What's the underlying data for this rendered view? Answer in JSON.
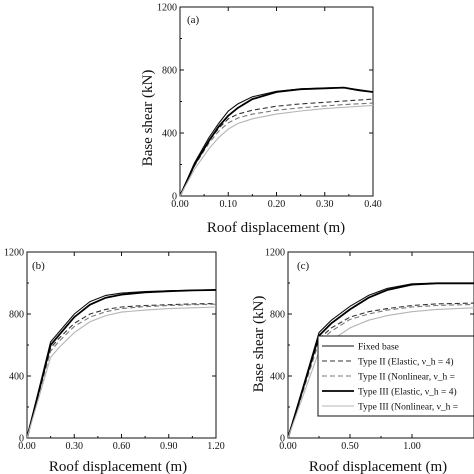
{
  "chart_data": [
    {
      "panel": "(a)",
      "type": "line",
      "xlabel": "Roof displacement (m)",
      "ylabel": "Base shear (kN)",
      "xlim": [
        0,
        0.4
      ],
      "ylim": [
        0,
        1200
      ],
      "xticks": [
        "0.00",
        "0.10",
        "0.20",
        "0.30",
        "0.40"
      ],
      "yticks": [
        "0",
        "400",
        "800",
        "1200"
      ],
      "series": [
        {
          "key": "fixed",
          "x": [
            0,
            0.03,
            0.06,
            0.08,
            0.1,
            0.12,
            0.15,
            0.2,
            0.25,
            0.3,
            0.34,
            0.37,
            0.4
          ],
          "y": [
            0,
            210,
            370,
            460,
            540,
            585,
            630,
            665,
            680,
            685,
            688,
            675,
            660
          ]
        },
        {
          "key": "t2e",
          "x": [
            0,
            0.03,
            0.06,
            0.08,
            0.1,
            0.12,
            0.15,
            0.2,
            0.25,
            0.3,
            0.35,
            0.4
          ],
          "y": [
            0,
            200,
            350,
            430,
            490,
            520,
            545,
            570,
            585,
            595,
            605,
            615
          ]
        },
        {
          "key": "t2n",
          "x": [
            0,
            0.03,
            0.06,
            0.08,
            0.1,
            0.12,
            0.15,
            0.2,
            0.25,
            0.3,
            0.35,
            0.4
          ],
          "y": [
            0,
            190,
            335,
            410,
            465,
            495,
            520,
            545,
            560,
            572,
            582,
            590
          ]
        },
        {
          "key": "t3e",
          "x": [
            0,
            0.03,
            0.06,
            0.08,
            0.1,
            0.12,
            0.15,
            0.2,
            0.25,
            0.3,
            0.34,
            0.37,
            0.4
          ],
          "y": [
            0,
            200,
            350,
            440,
            510,
            560,
            615,
            660,
            678,
            684,
            688,
            672,
            660
          ]
        },
        {
          "key": "t3n",
          "x": [
            0,
            0.03,
            0.06,
            0.08,
            0.1,
            0.12,
            0.15,
            0.2,
            0.25,
            0.3,
            0.35,
            0.4
          ],
          "y": [
            0,
            170,
            300,
            370,
            425,
            460,
            490,
            520,
            540,
            555,
            565,
            575
          ]
        }
      ]
    },
    {
      "panel": "(b)",
      "type": "line",
      "xlabel": "Roof displacement (m)",
      "ylabel": "",
      "xlim": [
        0,
        1.2
      ],
      "ylim": [
        0,
        1200
      ],
      "xticks": [
        "0.00",
        "0.30",
        "0.60",
        "0.90",
        "1.20"
      ],
      "yticks": [
        "0",
        "400",
        "800",
        "1200"
      ],
      "series": [
        {
          "key": "fixed",
          "x": [
            0,
            0.15,
            0.2,
            0.3,
            0.4,
            0.5,
            0.6,
            0.75,
            0.9,
            1.05,
            1.2
          ],
          "y": [
            0,
            620,
            680,
            800,
            880,
            920,
            935,
            945,
            950,
            953,
            957
          ]
        },
        {
          "key": "t2e",
          "x": [
            0,
            0.15,
            0.2,
            0.3,
            0.4,
            0.5,
            0.6,
            0.75,
            0.9,
            1.05,
            1.2
          ],
          "y": [
            0,
            580,
            640,
            740,
            800,
            830,
            845,
            855,
            860,
            865,
            868
          ]
        },
        {
          "key": "t2n",
          "x": [
            0,
            0.15,
            0.2,
            0.3,
            0.4,
            0.5,
            0.6,
            0.75,
            0.9,
            1.05,
            1.2
          ],
          "y": [
            0,
            560,
            620,
            720,
            780,
            815,
            835,
            848,
            855,
            860,
            863
          ]
        },
        {
          "key": "t3e",
          "x": [
            0,
            0.15,
            0.2,
            0.3,
            0.4,
            0.5,
            0.6,
            0.75,
            0.9,
            1.05,
            1.2
          ],
          "y": [
            0,
            600,
            660,
            780,
            860,
            905,
            925,
            940,
            947,
            952,
            955
          ]
        },
        {
          "key": "t3n",
          "x": [
            0,
            0.15,
            0.2,
            0.3,
            0.4,
            0.5,
            0.6,
            0.75,
            0.9,
            1.05,
            1.2
          ],
          "y": [
            0,
            520,
            580,
            680,
            750,
            790,
            812,
            825,
            835,
            840,
            845
          ]
        }
      ]
    },
    {
      "panel": "(c)",
      "type": "line",
      "xlabel": "Roof displacement (m)",
      "ylabel": "Base shear (kN)",
      "xlim": [
        0,
        1.5
      ],
      "ylim": [
        0,
        1200
      ],
      "xticks": [
        "0.00",
        "0.50",
        "1.00"
      ],
      "yticks": [
        "0",
        "400",
        "800",
        "1200"
      ],
      "series": [
        {
          "key": "fixed",
          "x": [
            0,
            0.25,
            0.35,
            0.5,
            0.65,
            0.8,
            1.0,
            1.2,
            1.5
          ],
          "y": [
            0,
            680,
            760,
            850,
            920,
            965,
            995,
            1000,
            1000
          ]
        },
        {
          "key": "t2e",
          "x": [
            0,
            0.25,
            0.35,
            0.5,
            0.65,
            0.8,
            1.0,
            1.2,
            1.5
          ],
          "y": [
            0,
            640,
            710,
            780,
            815,
            835,
            855,
            865,
            870
          ]
        },
        {
          "key": "t2n",
          "x": [
            0,
            0.25,
            0.35,
            0.5,
            0.65,
            0.8,
            1.0,
            1.2,
            1.5
          ],
          "y": [
            0,
            620,
            690,
            765,
            800,
            825,
            845,
            855,
            862
          ]
        },
        {
          "key": "t3e",
          "x": [
            0,
            0.25,
            0.35,
            0.5,
            0.65,
            0.8,
            1.0,
            1.2,
            1.5
          ],
          "y": [
            0,
            660,
            740,
            830,
            905,
            955,
            990,
            998,
            998
          ]
        },
        {
          "key": "t3n",
          "x": [
            0,
            0.25,
            0.35,
            0.5,
            0.65,
            0.8,
            1.0,
            1.2,
            1.5
          ],
          "y": [
            0,
            560,
            630,
            710,
            760,
            790,
            815,
            830,
            840
          ]
        }
      ]
    }
  ],
  "legend": [
    {
      "key": "fixed",
      "label": "Fixed base"
    },
    {
      "key": "t2e",
      "label": "Type II (Elastic, ν_h = 4)"
    },
    {
      "key": "t2n",
      "label": "Type II (Nonlinear, ν_h ="
    },
    {
      "key": "t3e",
      "label": "Type III (Elastic, ν_h = 4)"
    },
    {
      "key": "t3n",
      "label": "Type III (Nonlinear, ν_h ="
    }
  ],
  "styles": {
    "fixed": {
      "color": "#111111",
      "dash": ""
    },
    "t2e": {
      "color": "#333333",
      "dash": "5,3"
    },
    "t2n": {
      "color": "#777777",
      "dash": "5,3"
    },
    "t3e": {
      "color": "#000000",
      "dash": ""
    },
    "t3n": {
      "color": "#b5b5b5",
      "dash": ""
    }
  }
}
